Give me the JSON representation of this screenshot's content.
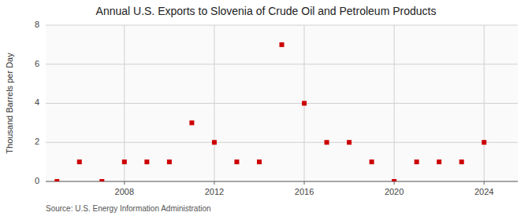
{
  "chart_data": {
    "type": "scatter",
    "title": "Annual U.S. Exports to Slovenia of Crude Oil and Petroleum Products",
    "ylabel": "Thousand Barrels per Day",
    "source": "Source: U.S. Energy Information Administration",
    "x": [
      2005,
      2006,
      2007,
      2008,
      2009,
      2010,
      2011,
      2012,
      2013,
      2014,
      2015,
      2016,
      2017,
      2018,
      2019,
      2020,
      2021,
      2022,
      2023,
      2024
    ],
    "values": [
      0,
      1,
      0,
      1,
      1,
      1,
      3,
      2,
      1,
      1,
      7,
      4,
      2,
      2,
      1,
      0,
      1,
      1,
      1,
      2
    ],
    "color": "#cc0000",
    "marker": "square",
    "xlim": [
      2004.5,
      2025.5
    ],
    "xticks": [
      2008,
      2012,
      2016,
      2020,
      2024
    ],
    "ylim": [
      0,
      8
    ],
    "yticks": [
      0,
      2,
      4,
      6,
      8
    ],
    "grid": true
  }
}
